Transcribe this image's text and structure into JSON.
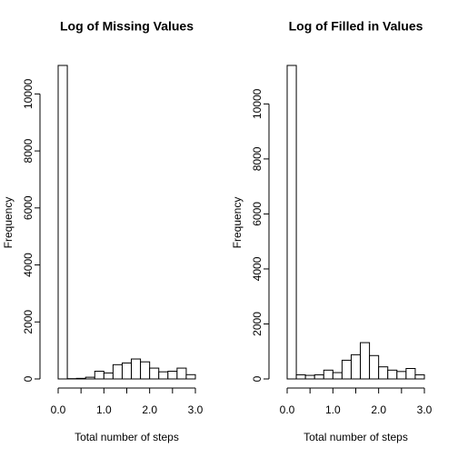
{
  "chart_data": [
    {
      "type": "histogram",
      "title": "Log of Missing Values",
      "xlabel": "Total number of steps",
      "ylabel": "Frequency",
      "bins": [
        0,
        0.2,
        0.4,
        0.6,
        0.8,
        1.0,
        1.2,
        1.4,
        1.6,
        1.8,
        2.0,
        2.2,
        2.4,
        2.6,
        2.8,
        3.0
      ],
      "values": [
        11000,
        10,
        20,
        60,
        270,
        210,
        500,
        560,
        700,
        600,
        380,
        250,
        270,
        380,
        150
      ],
      "color": "#ffffff",
      "xlim": [
        0,
        3
      ],
      "xticks": [
        {
          "value": 0,
          "label": "0.0"
        },
        {
          "value": 1,
          "label": "1.0"
        },
        {
          "value": 2,
          "label": "2.0"
        },
        {
          "value": 3,
          "label": "3.0"
        }
      ],
      "xminor_ticks": [
        0.5,
        1.5,
        2.5
      ],
      "ylim": [
        0,
        11000
      ],
      "yticks": [
        0,
        2000,
        4000,
        6000,
        8000,
        10000
      ]
    },
    {
      "type": "histogram",
      "title": "Log of Filled in Values",
      "xlabel": "Total number of steps",
      "ylabel": "Frequency",
      "bins": [
        0,
        0.2,
        0.4,
        0.6,
        0.8,
        1.0,
        1.2,
        1.4,
        1.6,
        1.8,
        2.0,
        2.2,
        2.4,
        2.6,
        2.8,
        3.0
      ],
      "values": [
        11400,
        150,
        130,
        150,
        320,
        230,
        680,
        880,
        1320,
        850,
        440,
        320,
        270,
        380,
        150
      ],
      "color": "#ffffff",
      "xlim": [
        0,
        3
      ],
      "xticks": [
        {
          "value": 0,
          "label": "0.0"
        },
        {
          "value": 1,
          "label": "1.0"
        },
        {
          "value": 2,
          "label": "2.0"
        },
        {
          "value": 3,
          "label": "3.0"
        }
      ],
      "xminor_ticks": [
        0.5,
        1.5,
        2.5
      ],
      "ylim": [
        0,
        11400
      ],
      "yticks": [
        0,
        2000,
        4000,
        6000,
        8000,
        10000
      ]
    }
  ]
}
